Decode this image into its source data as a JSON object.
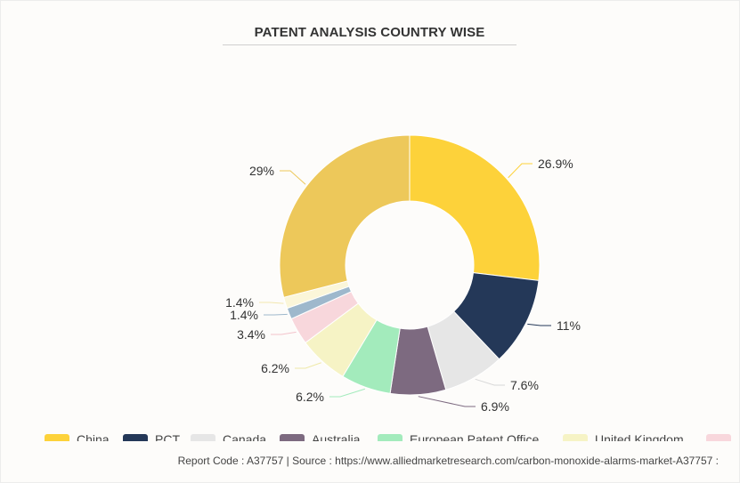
{
  "chart_data": {
    "type": "pie",
    "variant": "donut",
    "title": "PATENT ANALYSIS COUNTRY WISE",
    "slices": [
      {
        "name": "China",
        "value": 26.9,
        "label": "26.9%",
        "color": "#fdd23a"
      },
      {
        "name": "PCT",
        "value": 11,
        "label": "11%",
        "color": "#243858"
      },
      {
        "name": "Canada",
        "value": 7.6,
        "label": "7.6%",
        "color": "#e6e6e6"
      },
      {
        "name": "Australia",
        "value": 6.9,
        "label": "6.9%",
        "color": "#7d6a80"
      },
      {
        "name": "European Patent Office",
        "value": 6.2,
        "label": "6.2%",
        "color": "#a3ebbc"
      },
      {
        "name": "United Kingdom",
        "value": 6.2,
        "label": "6.2%",
        "color": "#f6f3c5"
      },
      {
        "name": "",
        "value": 3.4,
        "label": "3.4%",
        "color": "#f8d7dc"
      },
      {
        "name": "",
        "value": 1.4,
        "label": "1.4%",
        "color": "#9eb8cc"
      },
      {
        "name": "",
        "value": 1.4,
        "label": "1.4%",
        "color": "#fbf6d9"
      },
      {
        "name": "",
        "value": 29,
        "label": "29%",
        "color": "#edc85a"
      }
    ],
    "legend": [
      {
        "label": "China",
        "color": "#fdd23a"
      },
      {
        "label": "PCT",
        "color": "#243858"
      },
      {
        "label": "Canada",
        "color": "#e6e6e6"
      },
      {
        "label": "Australia",
        "color": "#7d6a80"
      },
      {
        "label": "European Patent Office",
        "color": "#a3ebbc"
      },
      {
        "label": "United Kingdom",
        "color": "#f6f3c5"
      },
      {
        "label": "",
        "color": "#f8d7dc"
      }
    ],
    "legend_position": "bottom"
  },
  "footer": {
    "text": "Report Code : A37757  |  Source : https://www.alliedmarketresearch.com/carbon-monoxide-alarms-market-A37757 :"
  }
}
